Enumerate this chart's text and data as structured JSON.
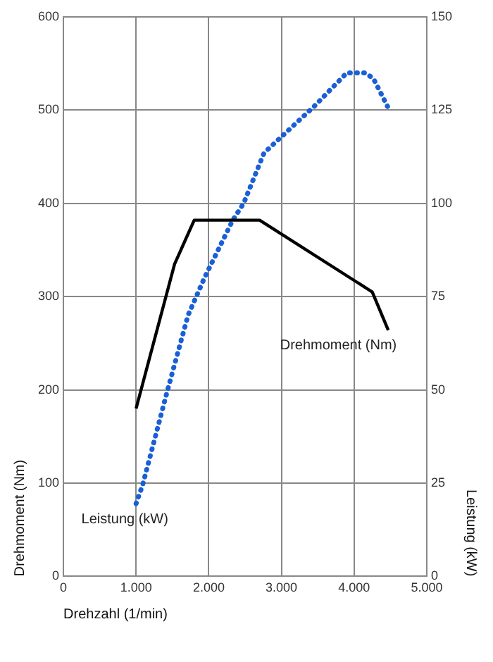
{
  "chart_data": {
    "type": "line",
    "xlabel": "Drehzahl (1/min)",
    "ylabel": "Drehmoment (Nm)",
    "y2label": "Leistung (kW)",
    "xlim": [
      0,
      5000
    ],
    "xticks": [
      0,
      {
        "value": 1000,
        "label": "1.000"
      },
      {
        "value": 2000,
        "label": "2.000"
      },
      {
        "value": 3000,
        "label": "3.000"
      },
      {
        "value": 4000,
        "label": "4.000"
      },
      {
        "value": 5000,
        "label": "5.000"
      }
    ],
    "ylim": [
      0,
      600
    ],
    "yticks": [
      0,
      100,
      200,
      300,
      400,
      500,
      600
    ],
    "y2lim": [
      0,
      150
    ],
    "y2ticks": [
      0,
      25,
      50,
      75,
      100,
      125,
      150
    ],
    "grid": true,
    "legend": false,
    "marker": "none",
    "series": [
      {
        "name": "Drehmoment (Nm)",
        "color": "#000000",
        "line_style": "solid",
        "x": [
          1000,
          1530,
          1800,
          2700,
          4250,
          4470
        ],
        "values": [
          180,
          335,
          382,
          382,
          305,
          264
        ]
      },
      {
        "name": "Leistung (kW)",
        "color": "#1a5fd6",
        "line_style": "dotted",
        "axis": "y2",
        "x": [
          1000,
          1090,
          1420,
          1715,
          1940,
          2330,
          2480,
          2760,
          3035,
          3450,
          3900,
          4150,
          4265,
          4460
        ],
        "values": [
          19.5,
          24.5,
          49,
          70,
          80,
          95.5,
          100,
          113.5,
          118.5,
          126,
          135,
          135,
          133.5,
          126
        ]
      }
    ]
  }
}
